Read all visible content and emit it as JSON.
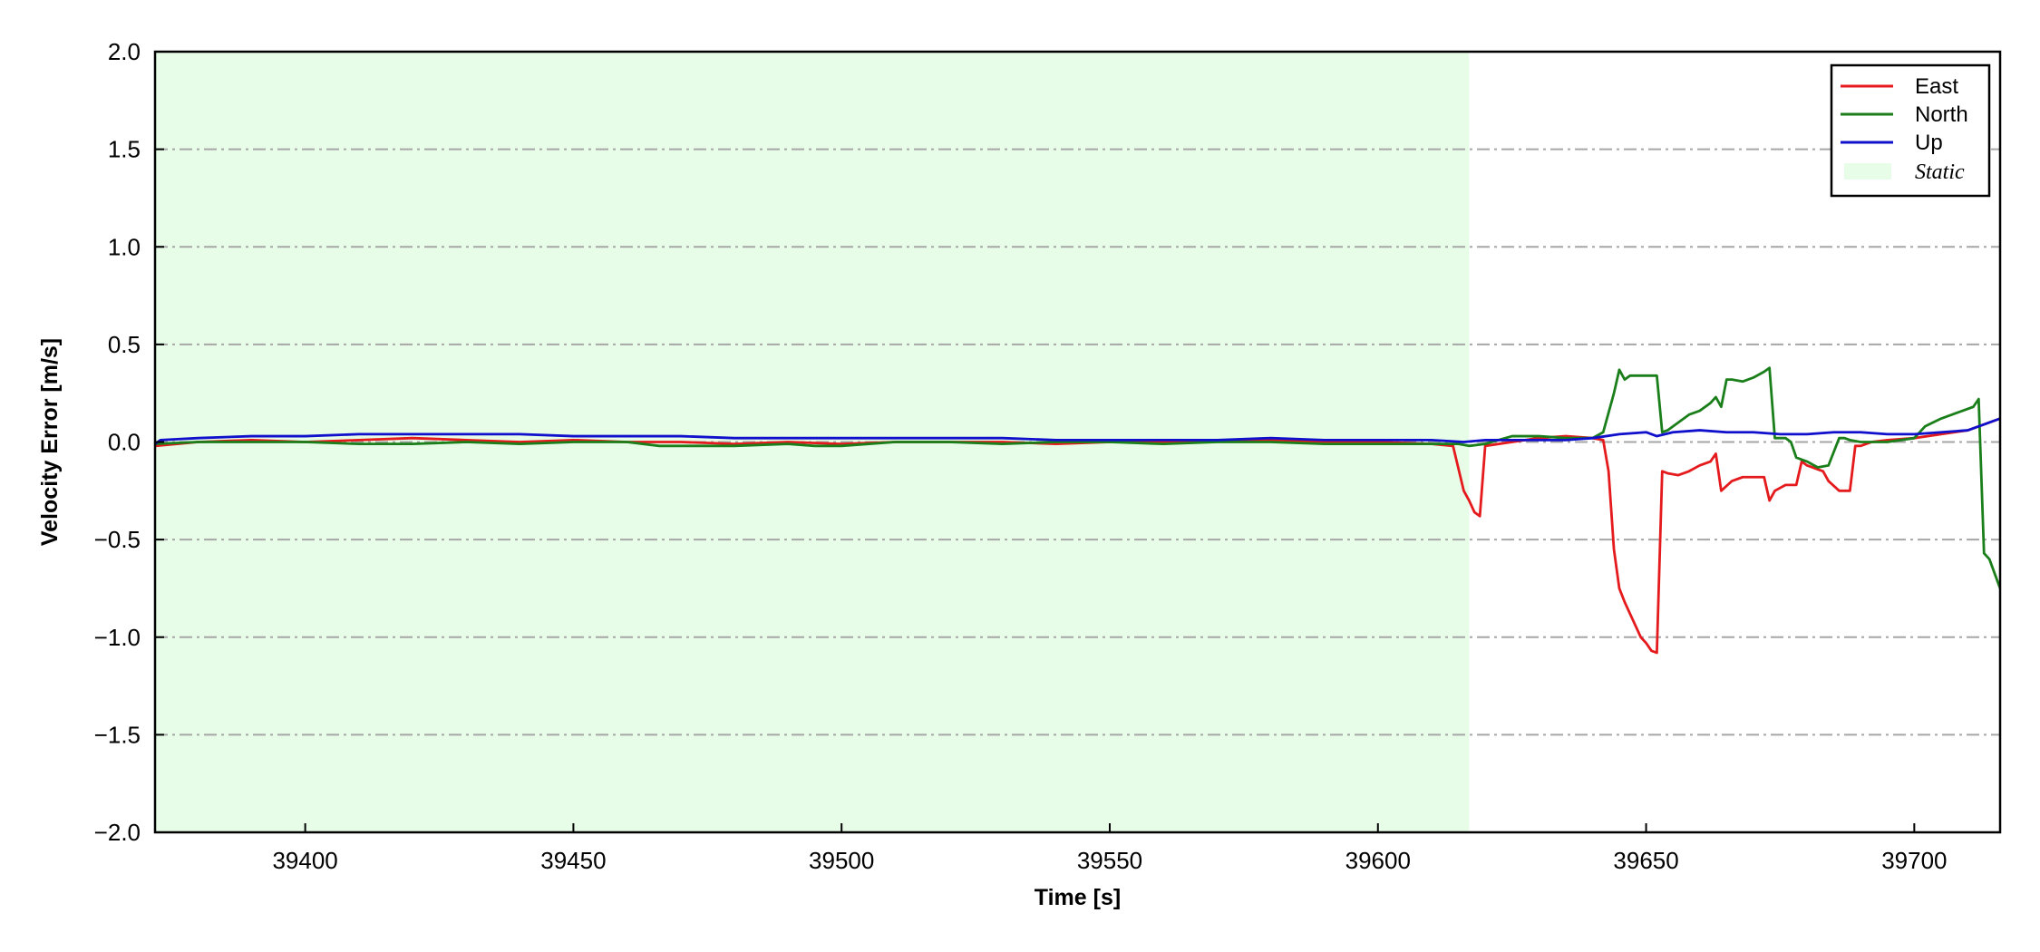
{
  "chart_data": {
    "type": "line",
    "title": "",
    "xlabel": "Time [s]",
    "ylabel": "Velocity Error [m/s]",
    "xlim": [
      39372,
      39716
    ],
    "ylim": [
      -2.0,
      2.0
    ],
    "xticks": [
      39400,
      39450,
      39500,
      39550,
      39600,
      39650,
      39700
    ],
    "xtick_labels": [
      "39400",
      "39450",
      "39500",
      "39550",
      "39600",
      "39650",
      "39700"
    ],
    "yticks": [
      -2.0,
      -1.5,
      -1.0,
      -0.5,
      0.0,
      0.5,
      1.0,
      1.5,
      2.0
    ],
    "ytick_labels": [
      "−2.0",
      "−1.5",
      "−1.0",
      "−0.5",
      "0.0",
      "0.5",
      "1.0",
      "1.5",
      "2.0"
    ],
    "grid": "horizontal dash-dot",
    "legend_position": "top-right",
    "static_region": {
      "label": "Static",
      "x": [
        39372,
        39617
      ],
      "color": "#e8fde8"
    },
    "series": [
      {
        "name": "East",
        "color": "#e41a1c",
        "x": [
          39372,
          39380,
          39390,
          39400,
          39410,
          39420,
          39430,
          39440,
          39450,
          39460,
          39470,
          39480,
          39490,
          39500,
          39510,
          39520,
          39530,
          39540,
          39550,
          39560,
          39570,
          39580,
          39590,
          39600,
          39610,
          39614,
          39616,
          39617,
          39618,
          39619,
          39620,
          39625,
          39630,
          39635,
          39640,
          39642,
          39643,
          39644,
          39645,
          39646,
          39647,
          39648,
          39649,
          39650,
          39651,
          39652,
          39653,
          39654,
          39656,
          39658,
          39660,
          39662,
          39663,
          39664,
          39666,
          39668,
          39670,
          39672,
          39673,
          39674,
          39676,
          39678,
          39679,
          39680,
          39681,
          39682,
          39683,
          39684,
          39686,
          39688,
          39689,
          39690,
          39692,
          39695,
          39700,
          39705,
          39710,
          39716
        ],
        "y": [
          -0.02,
          0.0,
          0.01,
          0.0,
          0.01,
          0.02,
          0.01,
          0.0,
          0.01,
          0.0,
          0.0,
          -0.01,
          0.0,
          -0.01,
          0.0,
          0.0,
          0.0,
          -0.01,
          0.0,
          0.0,
          0.01,
          0.01,
          0.0,
          0.0,
          -0.01,
          -0.02,
          -0.25,
          -0.3,
          -0.36,
          -0.38,
          -0.02,
          0.0,
          0.02,
          0.03,
          0.02,
          0.01,
          -0.15,
          -0.55,
          -0.75,
          -0.82,
          -0.88,
          -0.94,
          -1.0,
          -1.03,
          -1.07,
          -1.08,
          -0.15,
          -0.16,
          -0.17,
          -0.15,
          -0.12,
          -0.1,
          -0.06,
          -0.25,
          -0.2,
          -0.18,
          -0.18,
          -0.18,
          -0.3,
          -0.25,
          -0.22,
          -0.22,
          -0.1,
          -0.12,
          -0.13,
          -0.14,
          -0.15,
          -0.2,
          -0.25,
          -0.25,
          -0.02,
          -0.02,
          0.0,
          0.01,
          0.02,
          0.04,
          0.06,
          0.12
        ]
      },
      {
        "name": "North",
        "color": "#1a7f1a",
        "x": [
          39372,
          39380,
          39390,
          39400,
          39410,
          39420,
          39430,
          39440,
          39450,
          39460,
          39466,
          39470,
          39480,
          39490,
          39495,
          39500,
          39510,
          39520,
          39530,
          39540,
          39550,
          39560,
          39570,
          39580,
          39590,
          39600,
          39610,
          39615,
          39617,
          39620,
          39625,
          39630,
          39635,
          39640,
          39642,
          39644,
          39645,
          39646,
          39647,
          39648,
          39650,
          39652,
          39653,
          39654,
          39656,
          39658,
          39660,
          39662,
          39663,
          39664,
          39665,
          39666,
          39668,
          39670,
          39672,
          39673,
          39674,
          39676,
          39677,
          39678,
          39680,
          39682,
          39684,
          39685,
          39686,
          39687,
          39688,
          39690,
          39695,
          39700,
          39702,
          39705,
          39708,
          39711,
          39712,
          39713,
          39714,
          39716
        ],
        "y": [
          -0.01,
          0.0,
          0.0,
          0.0,
          -0.01,
          -0.01,
          0.0,
          -0.01,
          0.0,
          0.0,
          -0.02,
          -0.02,
          -0.02,
          -0.01,
          -0.02,
          -0.02,
          0.0,
          0.0,
          -0.01,
          0.0,
          0.0,
          -0.01,
          0.0,
          0.0,
          -0.01,
          -0.01,
          -0.01,
          -0.01,
          -0.02,
          -0.01,
          0.03,
          0.03,
          0.02,
          0.02,
          0.05,
          0.25,
          0.37,
          0.32,
          0.34,
          0.34,
          0.34,
          0.34,
          0.05,
          0.06,
          0.1,
          0.14,
          0.16,
          0.2,
          0.23,
          0.18,
          0.32,
          0.32,
          0.31,
          0.33,
          0.36,
          0.38,
          0.02,
          0.02,
          0.0,
          -0.08,
          -0.1,
          -0.13,
          -0.12,
          -0.05,
          0.02,
          0.02,
          0.01,
          0.0,
          0.0,
          0.02,
          0.08,
          0.12,
          0.15,
          0.18,
          0.22,
          -0.57,
          -0.6,
          -0.75
        ]
      },
      {
        "name": "Up",
        "color": "#1010cc",
        "x": [
          39372,
          39373,
          39380,
          39390,
          39400,
          39410,
          39420,
          39430,
          39440,
          39450,
          39460,
          39470,
          39480,
          39490,
          39500,
          39510,
          39520,
          39530,
          39540,
          39550,
          39560,
          39570,
          39580,
          39590,
          39600,
          39610,
          39616,
          39620,
          39625,
          39630,
          39635,
          39640,
          39645,
          39650,
          39652,
          39655,
          39660,
          39665,
          39670,
          39675,
          39680,
          39685,
          39690,
          39695,
          39700,
          39705,
          39710,
          39716
        ],
        "y": [
          -0.01,
          0.01,
          0.02,
          0.03,
          0.03,
          0.04,
          0.04,
          0.04,
          0.04,
          0.03,
          0.03,
          0.03,
          0.02,
          0.02,
          0.02,
          0.02,
          0.02,
          0.02,
          0.01,
          0.01,
          0.01,
          0.01,
          0.02,
          0.01,
          0.01,
          0.01,
          0.0,
          0.01,
          0.01,
          0.01,
          0.01,
          0.02,
          0.04,
          0.05,
          0.03,
          0.05,
          0.06,
          0.05,
          0.05,
          0.04,
          0.04,
          0.05,
          0.05,
          0.04,
          0.04,
          0.05,
          0.06,
          0.12
        ]
      }
    ]
  }
}
